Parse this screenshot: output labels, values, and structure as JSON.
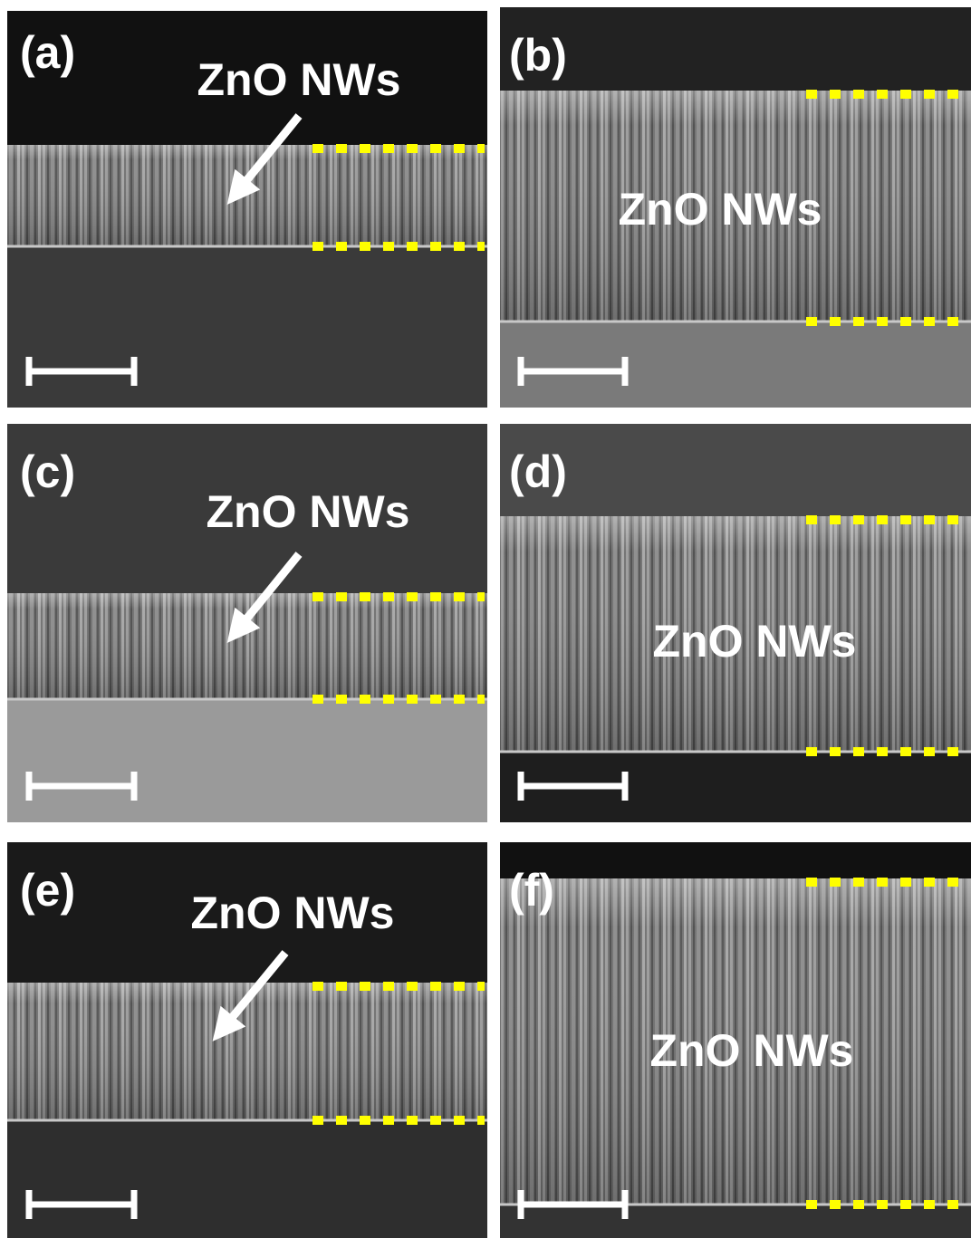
{
  "panels": [
    {
      "label": "(a)",
      "annotation": "ZnO NWs"
    },
    {
      "label": "(b)",
      "annotation": "ZnO NWs"
    },
    {
      "label": "(c)",
      "annotation": "ZnO NWs"
    },
    {
      "label": "(d)",
      "annotation": "ZnO NWs"
    },
    {
      "label": "(e)",
      "annotation": "ZnO NWs"
    },
    {
      "label": "(f)",
      "annotation": "ZnO NWs"
    }
  ]
}
